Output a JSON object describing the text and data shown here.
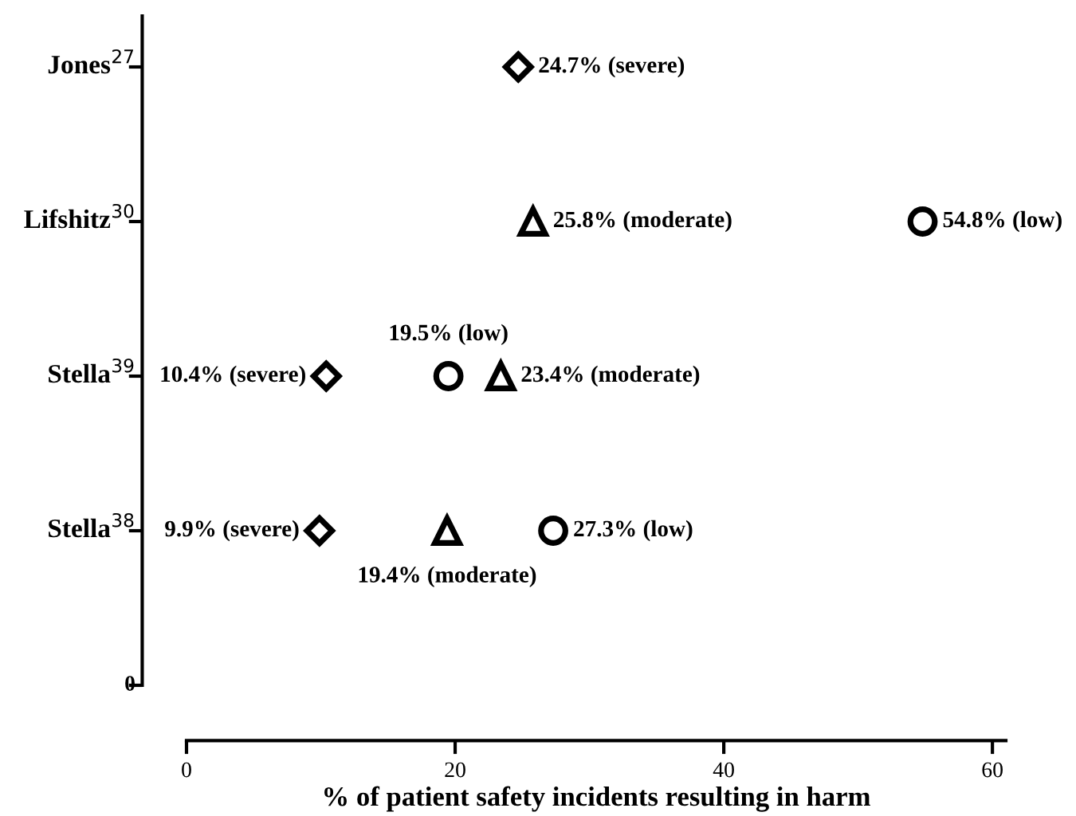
{
  "chart_data": {
    "type": "scatter",
    "orientation": "horizontal",
    "xlabel": "% of patient safety incidents resulting in harm",
    "xlim": [
      0,
      61
    ],
    "xticks": [
      0,
      20,
      40,
      60
    ],
    "categories": [
      "Jones$^{27}$",
      "Lifshitz$^{30}$",
      "Stella$^{39}$",
      "Stella$^{38}$"
    ],
    "annotations": [
      "0"
    ],
    "grid": false,
    "series": [
      {
        "color": "#000000",
        "marker": "diamond",
        "values": [
          24.7,
          null,
          10.4,
          9.9
        ],
        "value_labels": [
          "24.7% (severe)",
          null,
          "10.4% (severe)",
          "9.9% (severe)"
        ]
      },
      {
        "color": "#000000",
        "marker": "triangle",
        "values": [
          null,
          25.8,
          23.4,
          19.4
        ],
        "value_labels": [
          null,
          "25.8% (moderate)",
          "23.4% (moderate)",
          "19.4% (moderate)"
        ]
      },
      {
        "color": "#000000",
        "marker": "circle",
        "values": [
          null,
          54.8,
          19.5,
          27.3
        ],
        "value_labels": [
          null,
          "54.8% (low)",
          "19.5% (low)",
          "27.3% (low)"
        ]
      }
    ]
  }
}
